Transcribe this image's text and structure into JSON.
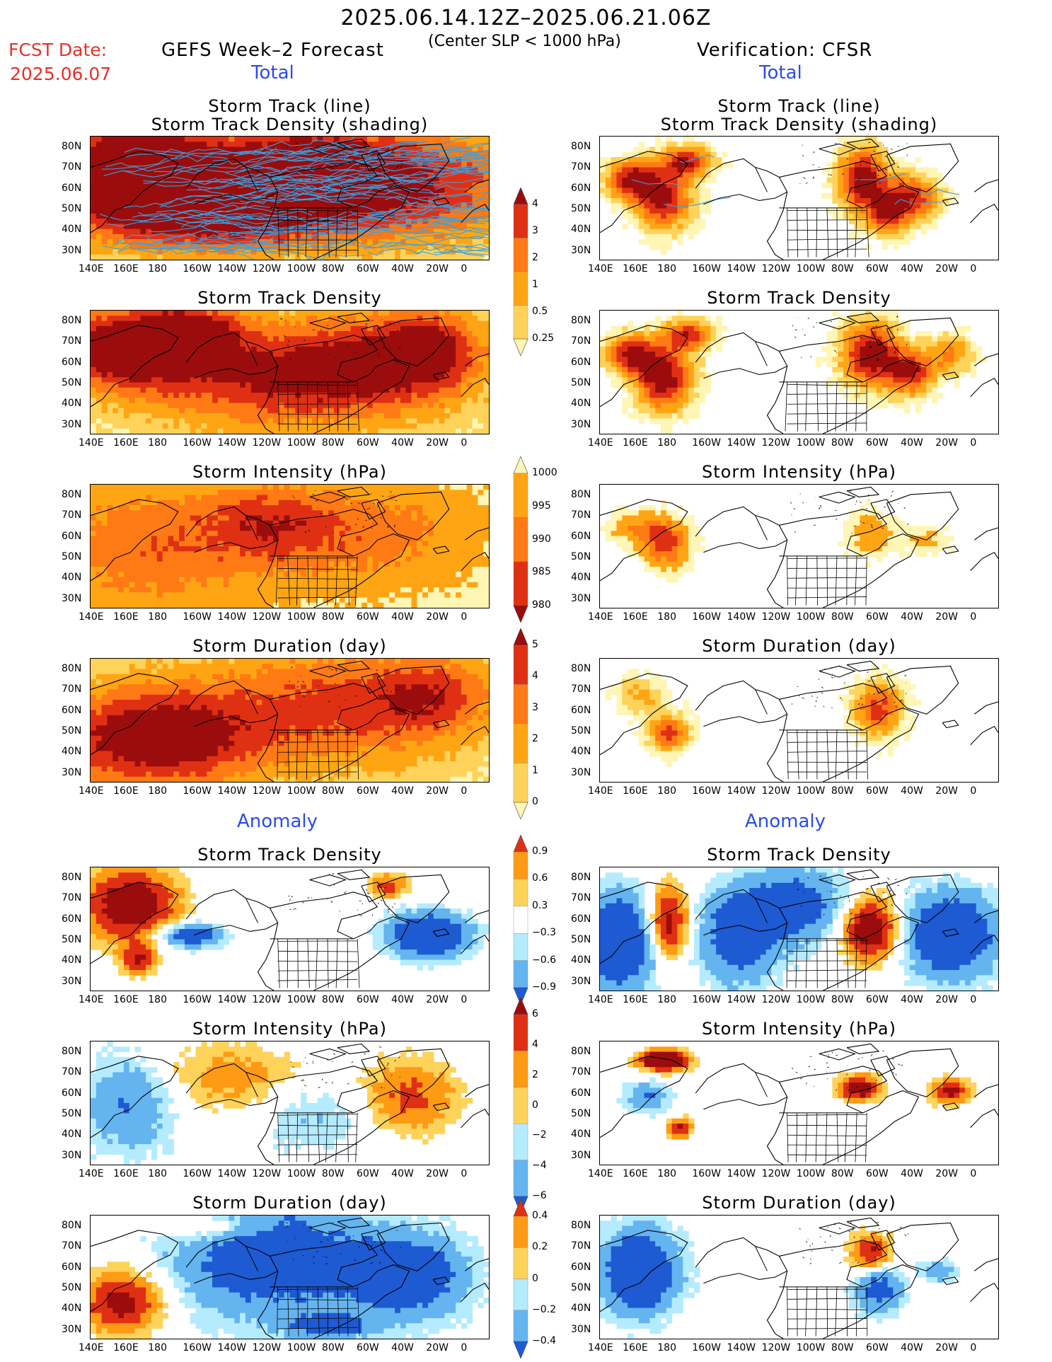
{
  "header": {
    "title": "2025.06.14.12Z–2025.06.21.06Z",
    "fcst_label": "FCST Date:",
    "fcst_date": "2025.06.07",
    "left_subtitle": "GEFS Week–2 Forecast",
    "center_subtitle": "(Center SLP < 1000 hPa)",
    "right_subtitle": "Verification: CFSR",
    "section_total": "Total",
    "section_anomaly": "Anomaly"
  },
  "axes": {
    "lat_labels": [
      "80N",
      "70N",
      "60N",
      "50N",
      "40N",
      "30N"
    ],
    "lon_labels": [
      "140E",
      "160E",
      "180",
      "160W",
      "140W",
      "120W",
      "100W",
      "80W",
      "60W",
      "40W",
      "20W",
      "0"
    ]
  },
  "panels": [
    {
      "id": "left-total-track",
      "title1": "Storm Track (line)",
      "title2": "Storm Track Density (shading)",
      "kind": "track",
      "scheme": "density",
      "side": "left"
    },
    {
      "id": "right-total-track",
      "title1": "Storm Track (line)",
      "title2": "Storm Track Density (shading)",
      "kind": "track",
      "scheme": "density",
      "side": "right"
    },
    {
      "id": "left-total-density",
      "title1": "Storm Track Density",
      "title2": "",
      "kind": "field",
      "scheme": "density",
      "side": "left"
    },
    {
      "id": "right-total-density",
      "title1": "Storm Track Density",
      "title2": "",
      "kind": "field",
      "scheme": "density",
      "side": "right"
    },
    {
      "id": "left-total-intensity",
      "title1": "Storm Intensity (hPa)",
      "title2": "",
      "kind": "field",
      "scheme": "intensity",
      "side": "left"
    },
    {
      "id": "right-total-intensity",
      "title1": "Storm Intensity (hPa)",
      "title2": "",
      "kind": "field",
      "scheme": "intensity",
      "side": "right"
    },
    {
      "id": "left-total-duration",
      "title1": "Storm Duration (day)",
      "title2": "",
      "kind": "field",
      "scheme": "duration",
      "side": "left"
    },
    {
      "id": "right-total-duration",
      "title1": "Storm Duration (day)",
      "title2": "",
      "kind": "field",
      "scheme": "duration",
      "side": "right"
    },
    {
      "id": "left-anom-density",
      "title1": "Storm Track Density",
      "title2": "",
      "kind": "field",
      "scheme": "anomaly",
      "side": "left"
    },
    {
      "id": "right-anom-density",
      "title1": "Storm Track Density",
      "title2": "",
      "kind": "field",
      "scheme": "anomaly",
      "side": "right"
    },
    {
      "id": "left-anom-intensity",
      "title1": "Storm Intensity (hPa)",
      "title2": "",
      "kind": "field",
      "scheme": "anomaly",
      "side": "left"
    },
    {
      "id": "right-anom-intensity",
      "title1": "Storm Intensity (hPa)",
      "title2": "",
      "kind": "field",
      "scheme": "anomaly",
      "side": "right"
    },
    {
      "id": "left-anom-duration",
      "title1": "Storm Duration (day)",
      "title2": "",
      "kind": "field",
      "scheme": "anomaly",
      "side": "left"
    },
    {
      "id": "right-anom-duration",
      "title1": "Storm Duration (day)",
      "title2": "",
      "kind": "field",
      "scheme": "anomaly",
      "side": "right"
    }
  ],
  "colorbars": [
    {
      "id": "cbar-density",
      "ticks": [
        "4",
        "3",
        "2",
        "1",
        "0.5",
        "0.25"
      ],
      "colors": [
        "#9b0d0d",
        "#e03014",
        "#ff7a14",
        "#ffa514",
        "#ffd25a",
        "#fff5b4"
      ]
    },
    {
      "id": "cbar-intensity",
      "ticks": [
        "1000",
        "995",
        "990",
        "985",
        "980"
      ],
      "colors": [
        "#fff5b4",
        "#ffa514",
        "#ff7a14",
        "#e03014",
        "#9b0d0d"
      ]
    },
    {
      "id": "cbar-duration",
      "ticks": [
        "5",
        "4",
        "3",
        "2",
        "1",
        "0"
      ],
      "colors": [
        "#9b0d0d",
        "#e03014",
        "#ff7a14",
        "#ffa514",
        "#ffd25a",
        "#fff5b4"
      ]
    },
    {
      "id": "cbar-anom-density",
      "ticks": [
        "0.9",
        "0.6",
        "0.3",
        "−0.3",
        "−0.6",
        "−0.9"
      ],
      "colors": [
        "#e03014",
        "#ff9a14",
        "#ffd25a",
        "#ffffff",
        "#b4ebff",
        "#64b4f0",
        "#1e5ad2"
      ]
    },
    {
      "id": "cbar-anom-intensity",
      "ticks": [
        "6",
        "4",
        "2",
        "0",
        "−2",
        "−4",
        "−6"
      ],
      "colors": [
        "#9b0d0d",
        "#e03014",
        "#ff9a14",
        "#ffd25a",
        "#b4ebff",
        "#64b4f0",
        "#1e5ad2"
      ]
    },
    {
      "id": "cbar-anom-duration",
      "ticks": [
        "0.4",
        "0.2",
        "0",
        "−0.2",
        "−0.4"
      ],
      "colors": [
        "#e03014",
        "#ff9a14",
        "#ffd25a",
        "#b4ebff",
        "#64b4f0",
        "#1e5ad2"
      ]
    }
  ],
  "palette": {
    "track_line": "#3aa0e0",
    "coast": "#000000"
  }
}
